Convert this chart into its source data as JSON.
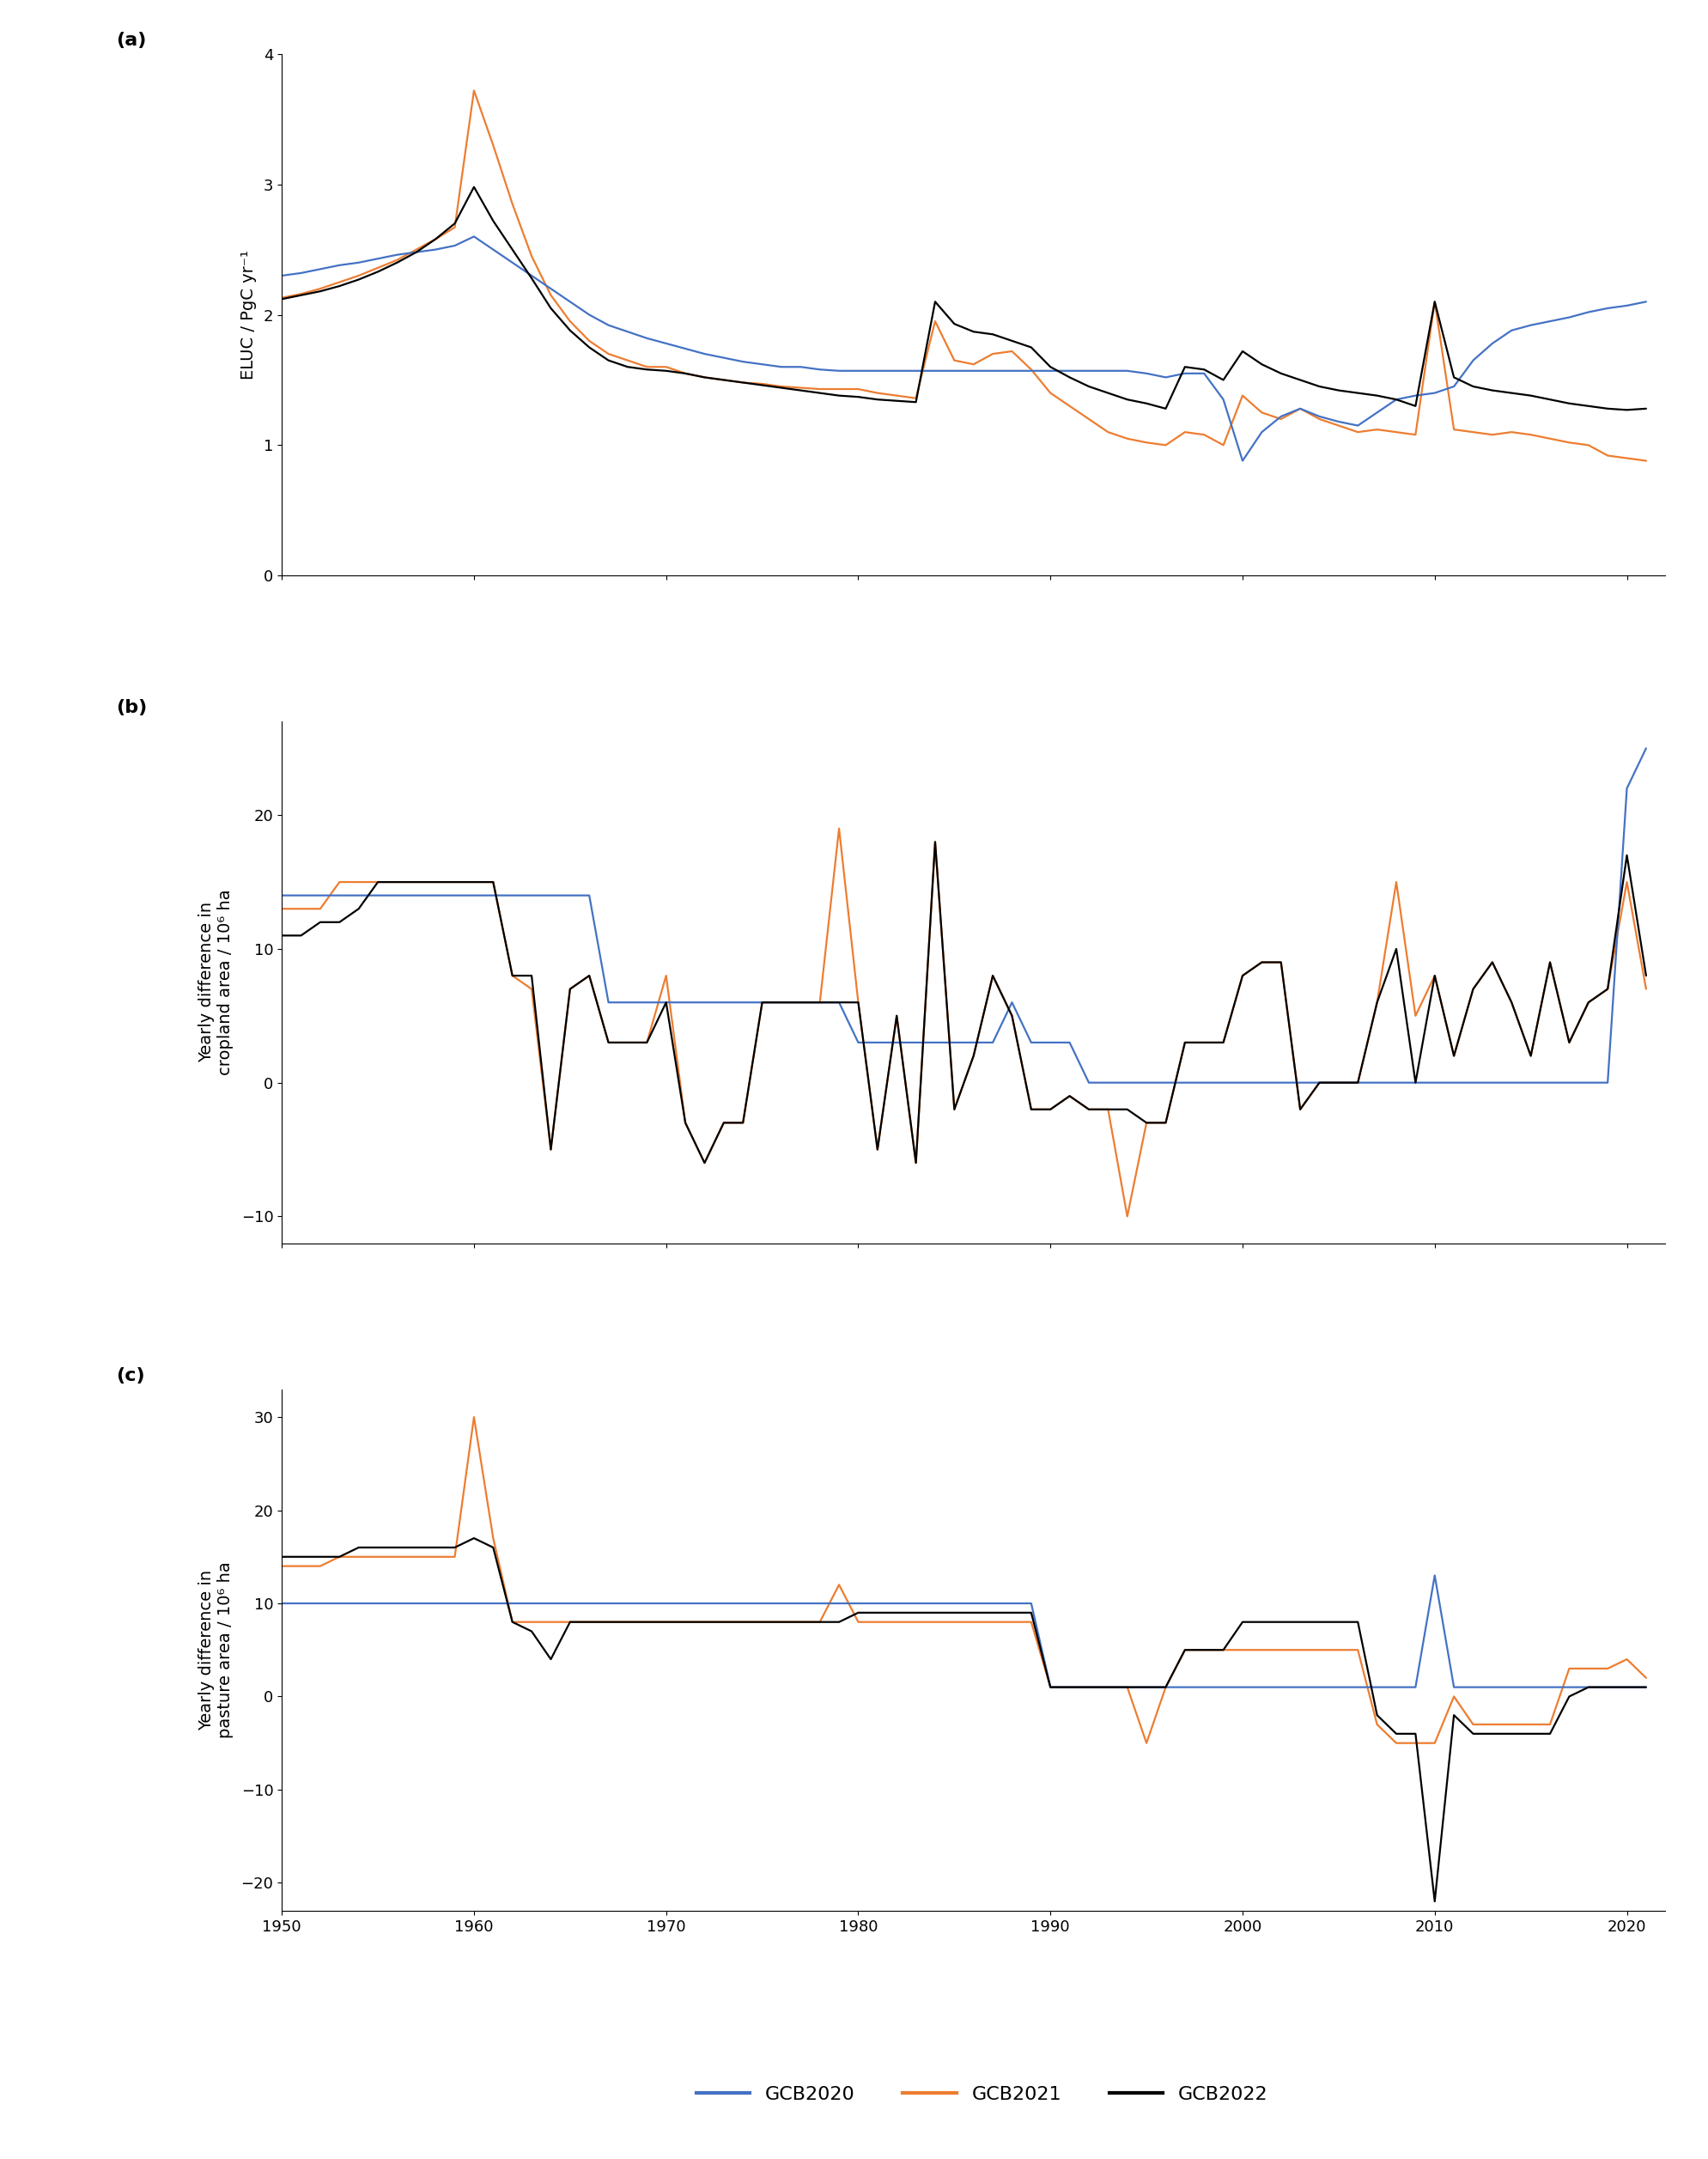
{
  "colors": {
    "GCB2020": "#4472C4",
    "GCB2021": "#ED7D31",
    "GCB2022": "#000000"
  },
  "years_a": [
    1950,
    1951,
    1952,
    1953,
    1954,
    1955,
    1956,
    1957,
    1958,
    1959,
    1960,
    1961,
    1962,
    1963,
    1964,
    1965,
    1966,
    1967,
    1968,
    1969,
    1970,
    1971,
    1972,
    1973,
    1974,
    1975,
    1976,
    1977,
    1978,
    1979,
    1980,
    1981,
    1982,
    1983,
    1984,
    1985,
    1986,
    1987,
    1988,
    1989,
    1990,
    1991,
    1992,
    1993,
    1994,
    1995,
    1996,
    1997,
    1998,
    1999,
    2000,
    2001,
    2002,
    2003,
    2004,
    2005,
    2006,
    2007,
    2008,
    2009,
    2010,
    2011,
    2012,
    2013,
    2014,
    2015,
    2016,
    2017,
    2018,
    2019,
    2020,
    2021
  ],
  "gcb2020_a": [
    2.3,
    2.32,
    2.35,
    2.38,
    2.4,
    2.43,
    2.46,
    2.48,
    2.5,
    2.53,
    2.6,
    2.5,
    2.4,
    2.3,
    2.2,
    2.1,
    2.0,
    1.92,
    1.87,
    1.82,
    1.78,
    1.74,
    1.7,
    1.67,
    1.64,
    1.62,
    1.6,
    1.6,
    1.58,
    1.57,
    1.57,
    1.57,
    1.57,
    1.57,
    1.57,
    1.57,
    1.57,
    1.57,
    1.57,
    1.57,
    1.57,
    1.57,
    1.57,
    1.57,
    1.57,
    1.55,
    1.52,
    1.55,
    1.55,
    1.35,
    0.88,
    1.1,
    1.22,
    1.28,
    1.22,
    1.18,
    1.15,
    1.25,
    1.35,
    1.38,
    1.4,
    1.45,
    1.65,
    1.78,
    1.88,
    1.92,
    1.95,
    1.98,
    2.02,
    2.05,
    2.07,
    2.1
  ],
  "gcb2021_a": [
    2.13,
    2.16,
    2.2,
    2.25,
    2.3,
    2.36,
    2.42,
    2.5,
    2.58,
    2.67,
    3.72,
    3.3,
    2.85,
    2.45,
    2.15,
    1.95,
    1.8,
    1.7,
    1.65,
    1.6,
    1.6,
    1.55,
    1.52,
    1.5,
    1.48,
    1.47,
    1.45,
    1.44,
    1.43,
    1.43,
    1.43,
    1.4,
    1.38,
    1.36,
    1.95,
    1.65,
    1.62,
    1.7,
    1.72,
    1.58,
    1.4,
    1.3,
    1.2,
    1.1,
    1.05,
    1.02,
    1.0,
    1.1,
    1.08,
    1.0,
    1.38,
    1.25,
    1.2,
    1.28,
    1.2,
    1.15,
    1.1,
    1.12,
    1.1,
    1.08,
    2.1,
    1.12,
    1.1,
    1.08,
    1.1,
    1.08,
    1.05,
    1.02,
    1.0,
    0.92,
    0.9,
    0.88
  ],
  "gcb2022_a": [
    2.12,
    2.15,
    2.18,
    2.22,
    2.27,
    2.33,
    2.4,
    2.48,
    2.58,
    2.7,
    2.98,
    2.72,
    2.5,
    2.28,
    2.05,
    1.88,
    1.75,
    1.65,
    1.6,
    1.58,
    1.57,
    1.55,
    1.52,
    1.5,
    1.48,
    1.46,
    1.44,
    1.42,
    1.4,
    1.38,
    1.37,
    1.35,
    1.34,
    1.33,
    2.1,
    1.93,
    1.87,
    1.85,
    1.8,
    1.75,
    1.6,
    1.52,
    1.45,
    1.4,
    1.35,
    1.32,
    1.28,
    1.6,
    1.58,
    1.5,
    1.72,
    1.62,
    1.55,
    1.5,
    1.45,
    1.42,
    1.4,
    1.38,
    1.35,
    1.3,
    2.1,
    1.52,
    1.45,
    1.42,
    1.4,
    1.38,
    1.35,
    1.32,
    1.3,
    1.28,
    1.27,
    1.28
  ],
  "years_b": [
    1950,
    1951,
    1952,
    1953,
    1954,
    1955,
    1956,
    1957,
    1958,
    1959,
    1960,
    1961,
    1962,
    1963,
    1964,
    1965,
    1966,
    1967,
    1968,
    1969,
    1970,
    1971,
    1972,
    1973,
    1974,
    1975,
    1976,
    1977,
    1978,
    1979,
    1980,
    1981,
    1982,
    1983,
    1984,
    1985,
    1986,
    1987,
    1988,
    1989,
    1990,
    1991,
    1992,
    1993,
    1994,
    1995,
    1996,
    1997,
    1998,
    1999,
    2000,
    2001,
    2002,
    2003,
    2004,
    2005,
    2006,
    2007,
    2008,
    2009,
    2010,
    2011,
    2012,
    2013,
    2014,
    2015,
    2016,
    2017,
    2018,
    2019,
    2020,
    2021
  ],
  "gcb2020_b": [
    14,
    14,
    14,
    14,
    14,
    14,
    14,
    14,
    14,
    14,
    14,
    14,
    14,
    14,
    14,
    14,
    14,
    6,
    6,
    6,
    6,
    6,
    6,
    6,
    6,
    6,
    6,
    6,
    6,
    6,
    3,
    3,
    3,
    3,
    3,
    3,
    3,
    3,
    6,
    3,
    3,
    3,
    0,
    0,
    0,
    0,
    0,
    0,
    0,
    0,
    0,
    0,
    0,
    0,
    0,
    0,
    0,
    0,
    0,
    0,
    0,
    0,
    0,
    0,
    0,
    0,
    0,
    0,
    0,
    0,
    22,
    25
  ],
  "gcb2021_b": [
    13,
    13,
    13,
    15,
    15,
    15,
    15,
    15,
    15,
    15,
    15,
    15,
    8,
    7,
    -5,
    7,
    8,
    3,
    3,
    3,
    8,
    -3,
    -6,
    -3,
    -3,
    6,
    6,
    6,
    6,
    19,
    6,
    -5,
    5,
    -6,
    18,
    -2,
    2,
    8,
    5,
    -2,
    -2,
    -1,
    -2,
    -2,
    -10,
    -3,
    -3,
    3,
    3,
    3,
    8,
    9,
    9,
    -2,
    0,
    0,
    0,
    6,
    15,
    5,
    8,
    2,
    7,
    9,
    6,
    2,
    9,
    3,
    6,
    7,
    15,
    7
  ],
  "gcb2022_b": [
    11,
    11,
    12,
    12,
    13,
    15,
    15,
    15,
    15,
    15,
    15,
    15,
    8,
    8,
    -5,
    7,
    8,
    3,
    3,
    3,
    6,
    -3,
    -6,
    -3,
    -3,
    6,
    6,
    6,
    6,
    6,
    6,
    -5,
    5,
    -6,
    18,
    -2,
    2,
    8,
    5,
    -2,
    -2,
    -1,
    -2,
    -2,
    -2,
    -3,
    -3,
    3,
    3,
    3,
    8,
    9,
    9,
    -2,
    0,
    0,
    0,
    6,
    10,
    0,
    8,
    2,
    7,
    9,
    6,
    2,
    9,
    3,
    6,
    7,
    17,
    8
  ],
  "years_c": [
    1950,
    1951,
    1952,
    1953,
    1954,
    1955,
    1956,
    1957,
    1958,
    1959,
    1960,
    1961,
    1962,
    1963,
    1964,
    1965,
    1966,
    1967,
    1968,
    1969,
    1970,
    1971,
    1972,
    1973,
    1974,
    1975,
    1976,
    1977,
    1978,
    1979,
    1980,
    1981,
    1982,
    1983,
    1984,
    1985,
    1986,
    1987,
    1988,
    1989,
    1990,
    1991,
    1992,
    1993,
    1994,
    1995,
    1996,
    1997,
    1998,
    1999,
    2000,
    2001,
    2002,
    2003,
    2004,
    2005,
    2006,
    2007,
    2008,
    2009,
    2010,
    2011,
    2012,
    2013,
    2014,
    2015,
    2016,
    2017,
    2018,
    2019,
    2020,
    2021
  ],
  "gcb2020_c": [
    10,
    10,
    10,
    10,
    10,
    10,
    10,
    10,
    10,
    10,
    10,
    10,
    10,
    10,
    10,
    10,
    10,
    10,
    10,
    10,
    10,
    10,
    10,
    10,
    10,
    10,
    10,
    10,
    10,
    10,
    10,
    10,
    10,
    10,
    10,
    10,
    10,
    10,
    10,
    10,
    1,
    1,
    1,
    1,
    1,
    1,
    1,
    1,
    1,
    1,
    1,
    1,
    1,
    1,
    1,
    1,
    1,
    1,
    1,
    1,
    13,
    1,
    1,
    1,
    1,
    1,
    1,
    1,
    1,
    1,
    1,
    1
  ],
  "gcb2021_c": [
    14,
    14,
    14,
    15,
    15,
    15,
    15,
    15,
    15,
    15,
    30,
    17,
    8,
    8,
    8,
    8,
    8,
    8,
    8,
    8,
    8,
    8,
    8,
    8,
    8,
    8,
    8,
    8,
    8,
    12,
    8,
    8,
    8,
    8,
    8,
    8,
    8,
    8,
    8,
    8,
    1,
    1,
    1,
    1,
    1,
    -5,
    1,
    5,
    5,
    5,
    5,
    5,
    5,
    5,
    5,
    5,
    5,
    -3,
    -5,
    -5,
    -5,
    0,
    -3,
    -3,
    -3,
    -3,
    -3,
    3,
    3,
    3,
    4,
    2
  ],
  "gcb2022_c": [
    15,
    15,
    15,
    15,
    16,
    16,
    16,
    16,
    16,
    16,
    17,
    16,
    8,
    7,
    4,
    8,
    8,
    8,
    8,
    8,
    8,
    8,
    8,
    8,
    8,
    8,
    8,
    8,
    8,
    8,
    9,
    9,
    9,
    9,
    9,
    9,
    9,
    9,
    9,
    9,
    1,
    1,
    1,
    1,
    1,
    1,
    1,
    5,
    5,
    5,
    8,
    8,
    8,
    8,
    8,
    8,
    8,
    -2,
    -4,
    -4,
    -22,
    -2,
    -4,
    -4,
    -4,
    -4,
    -4,
    0,
    1,
    1,
    1,
    1
  ],
  "panel_labels": [
    "(a)",
    "(b)",
    "(c)"
  ],
  "ylabels": [
    "ELUC / PgC yr⁻¹",
    "Yearly difference in\ncropland area / 10⁶ ha",
    "Yearly difference in\npasture area / 10⁶ ha"
  ],
  "ylims_a": [
    0,
    4
  ],
  "ylims_b": [
    -12,
    27
  ],
  "ylims_c": [
    -23,
    33
  ],
  "yticks_a": [
    0,
    1,
    2,
    3,
    4
  ],
  "yticks_b": [
    -10,
    0,
    10,
    20
  ],
  "yticks_c": [
    -20,
    -10,
    0,
    10,
    20,
    30
  ],
  "xticks": [
    1950,
    1960,
    1970,
    1980,
    1990,
    2000,
    2010,
    2020
  ],
  "xlim": [
    1950,
    2022
  ],
  "linewidth": 1.6,
  "background_color": "#ffffff",
  "fontsize_ticks": 13,
  "fontsize_label": 14,
  "fontsize_panel": 16,
  "fontsize_legend": 16
}
